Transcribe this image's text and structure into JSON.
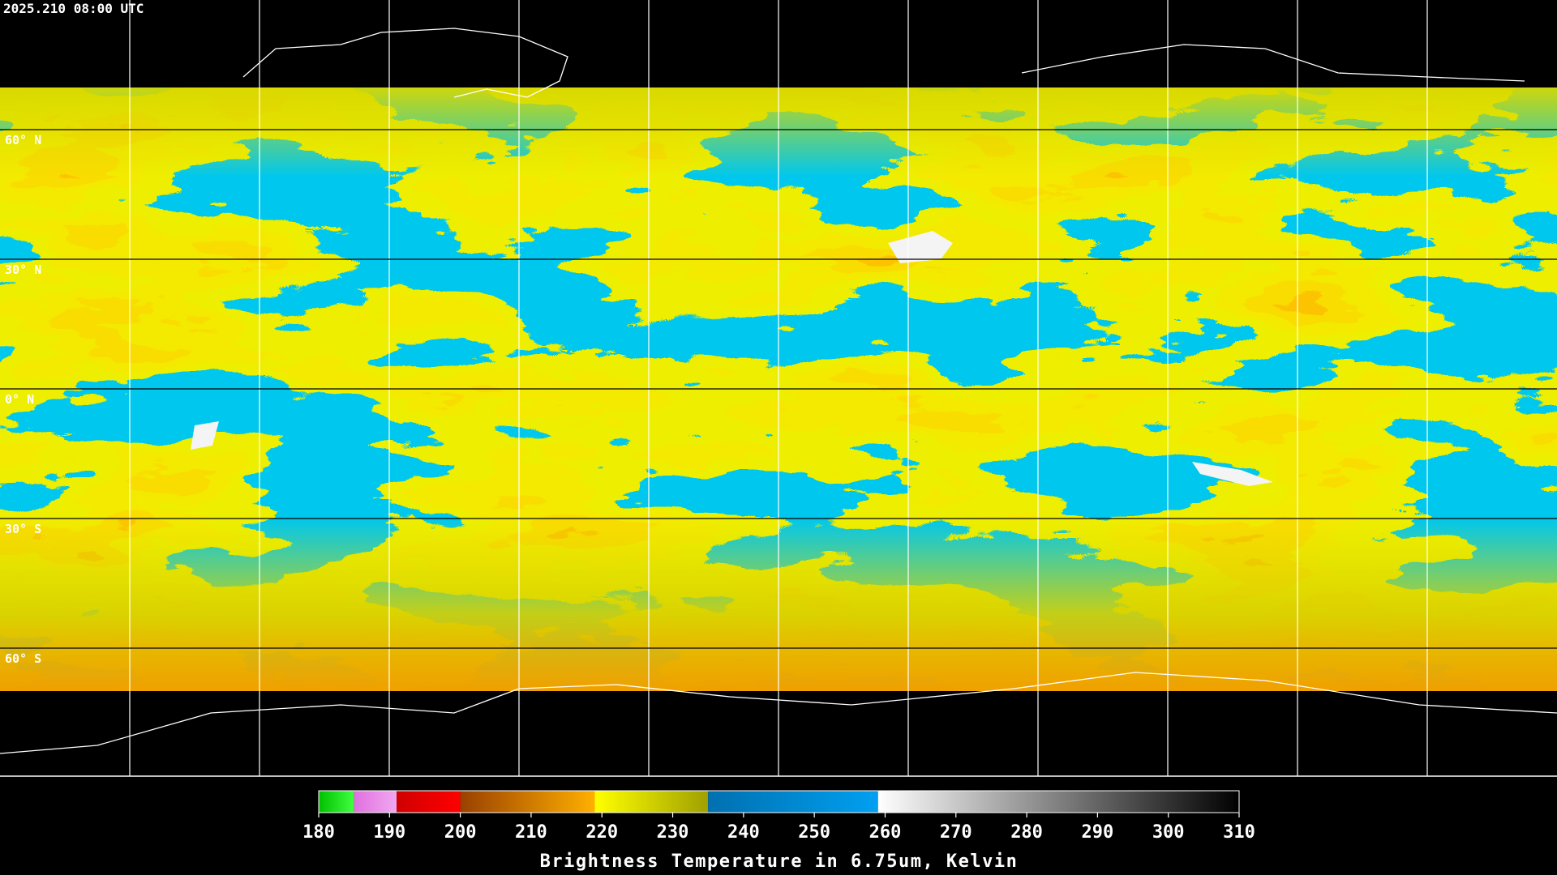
{
  "timestamp": "2025.210 08:00 UTC",
  "map": {
    "lat_labels": [
      "60° N",
      "30° N",
      "0° N",
      "30° S",
      "60° S"
    ]
  },
  "colorbar": {
    "lim": [
      180,
      310
    ],
    "ticks": [
      180,
      190,
      200,
      210,
      220,
      230,
      240,
      250,
      260,
      270,
      280,
      290,
      300,
      310
    ],
    "title": "Brightness Temperature in 6.75um, Kelvin",
    "segments": [
      {
        "from": 180,
        "to": 185,
        "colors": [
          "#00c000",
          "#40ff40"
        ]
      },
      {
        "from": 185,
        "to": 191,
        "colors": [
          "#e070e0",
          "#f0a8f0"
        ]
      },
      {
        "from": 191,
        "to": 200,
        "colors": [
          "#d00000",
          "#ff0000"
        ]
      },
      {
        "from": 200,
        "to": 219,
        "colors": [
          "#9a4000",
          "#ffb000"
        ]
      },
      {
        "from": 219,
        "to": 235,
        "colors": [
          "#ffff00",
          "#a0a000"
        ]
      },
      {
        "from": 235,
        "to": 259,
        "colors": [
          "#0070b0",
          "#00a0f0"
        ]
      },
      {
        "from": 259,
        "to": 310,
        "colors": [
          "#ffffff",
          "#000000"
        ]
      }
    ]
  }
}
